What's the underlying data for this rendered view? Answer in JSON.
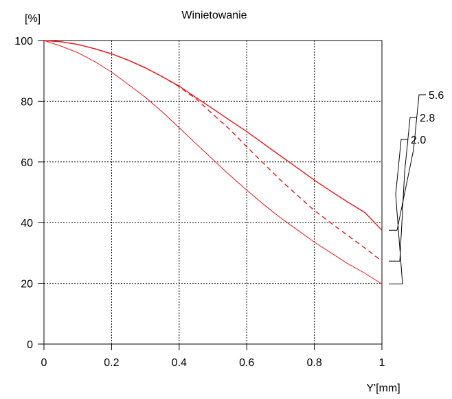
{
  "chart_data": {
    "type": "line",
    "title": "Winietowanie",
    "ylabel": "[%]",
    "xlabel": "Y'[mm]",
    "xlim": [
      0,
      1
    ],
    "ylim": [
      0,
      100
    ],
    "x_ticks": [
      0,
      0.2,
      0.4,
      0.6,
      0.8,
      1
    ],
    "x_tick_labels": [
      "0",
      "0.2",
      "0.4",
      "0.6",
      "0.8",
      "1"
    ],
    "y_ticks": [
      0,
      20,
      40,
      60,
      80,
      100
    ],
    "y_tick_labels": [
      "0",
      "20",
      "40",
      "60",
      "80",
      "100"
    ],
    "grid": true,
    "legend_placement": "right",
    "series": [
      {
        "name": "5.6",
        "style": "solid",
        "color": "#e8161b",
        "x": [
          0,
          0.05,
          0.1,
          0.15,
          0.2,
          0.25,
          0.3,
          0.35,
          0.4,
          0.45,
          0.5,
          0.55,
          0.6,
          0.65,
          0.7,
          0.75,
          0.8,
          0.85,
          0.9,
          0.95,
          1.0
        ],
        "y": [
          100,
          99.6,
          98.7,
          97.3,
          95.6,
          93.5,
          91.0,
          88.1,
          85.0,
          81.2,
          77.5,
          73.7,
          70.0,
          66.0,
          62.0,
          58.0,
          54.0,
          50.3,
          46.7,
          43.3,
          37.5
        ]
      },
      {
        "name": "2.8",
        "style": "dashed",
        "color": "#e8161b",
        "x": [
          0,
          0.05,
          0.1,
          0.15,
          0.2,
          0.25,
          0.3,
          0.35,
          0.4,
          0.45,
          0.5,
          0.55,
          0.6,
          0.65,
          0.7,
          0.75,
          0.8,
          0.85,
          0.9,
          0.95,
          1.0
        ],
        "y": [
          100,
          99.6,
          98.7,
          97.3,
          95.6,
          93.5,
          91.0,
          88.1,
          84.8,
          80.8,
          75.7,
          70.7,
          65.0,
          59.5,
          54.0,
          49.0,
          44.0,
          39.8,
          35.7,
          31.6,
          27.3
        ]
      },
      {
        "name": "2.0",
        "style": "thin",
        "color": "#e8161b",
        "x": [
          0,
          0.05,
          0.1,
          0.15,
          0.2,
          0.25,
          0.3,
          0.35,
          0.4,
          0.45,
          0.5,
          0.55,
          0.6,
          0.65,
          0.7,
          0.75,
          0.8,
          0.85,
          0.9,
          0.95,
          1.0
        ],
        "y": [
          100,
          98.2,
          96.0,
          93.1,
          89.6,
          85.5,
          81.3,
          76.5,
          71.3,
          66.0,
          60.8,
          55.6,
          50.7,
          46.0,
          41.6,
          37.6,
          33.6,
          30.0,
          26.4,
          23.3,
          19.8
        ]
      }
    ]
  }
}
